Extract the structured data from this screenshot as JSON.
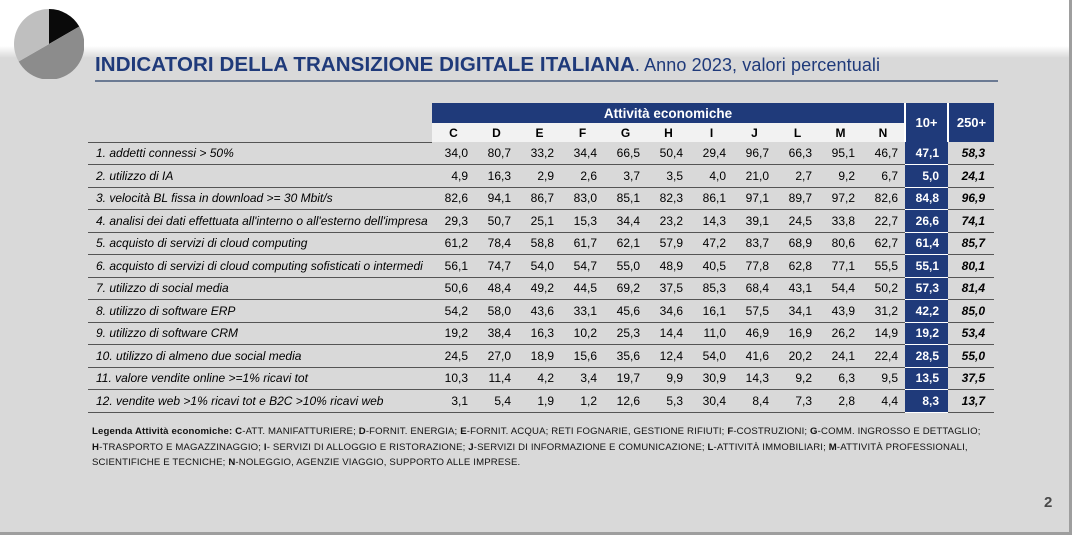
{
  "colors": {
    "accent": "#1f3a7a",
    "background": "#d9d9d9"
  },
  "title": {
    "main": "INDICATORI DELLA TRANSIZIONE DIGITALE ITALIANA",
    "sub": ". Anno 2023, valori percentuali"
  },
  "table": {
    "group_header": "Attività economiche",
    "columns": [
      "C",
      "D",
      "E",
      "F",
      "G",
      "H",
      "I",
      "J",
      "L",
      "M",
      "N"
    ],
    "total_headers": [
      "10+",
      "250+"
    ],
    "rows": [
      {
        "label": "1. addetti connessi > 50%",
        "values": [
          "34,0",
          "80,7",
          "33,2",
          "34,4",
          "66,5",
          "50,4",
          "29,4",
          "96,7",
          "66,3",
          "95,1",
          "46,7"
        ],
        "t10": "47,1",
        "t250": "58,3"
      },
      {
        "label": "2. utilizzo di IA",
        "values": [
          "4,9",
          "16,3",
          "2,9",
          "2,6",
          "3,7",
          "3,5",
          "4,0",
          "21,0",
          "2,7",
          "9,2",
          "6,7"
        ],
        "t10": "5,0",
        "t250": "24,1"
      },
      {
        "label": "3. velocità BL fissa in download >= 30 Mbit/s",
        "values": [
          "82,6",
          "94,1",
          "86,7",
          "83,0",
          "85,1",
          "82,3",
          "86,1",
          "97,1",
          "89,7",
          "97,2",
          "82,6"
        ],
        "t10": "84,8",
        "t250": "96,9"
      },
      {
        "label": "4. analisi dei dati effettuata all'interno o all'esterno dell'impresa",
        "values": [
          "29,3",
          "50,7",
          "25,1",
          "15,3",
          "34,4",
          "23,2",
          "14,3",
          "39,1",
          "24,5",
          "33,8",
          "22,7"
        ],
        "t10": "26,6",
        "t250": "74,1"
      },
      {
        "label": "5. acquisto di servizi di cloud computing",
        "values": [
          "61,2",
          "78,4",
          "58,8",
          "61,7",
          "62,1",
          "57,9",
          "47,2",
          "83,7",
          "68,9",
          "80,6",
          "62,7"
        ],
        "t10": "61,4",
        "t250": "85,7"
      },
      {
        "label": "6. acquisto di servizi di cloud computing sofisticati o intermedi",
        "values": [
          "56,1",
          "74,7",
          "54,0",
          "54,7",
          "55,0",
          "48,9",
          "40,5",
          "77,8",
          "62,8",
          "77,1",
          "55,5"
        ],
        "t10": "55,1",
        "t250": "80,1"
      },
      {
        "label": "7. utilizzo di social media",
        "values": [
          "50,6",
          "48,4",
          "49,2",
          "44,5",
          "69,2",
          "37,5",
          "85,3",
          "68,4",
          "43,1",
          "54,4",
          "50,2"
        ],
        "t10": "57,3",
        "t250": "81,4"
      },
      {
        "label": "8. utilizzo di software ERP",
        "values": [
          "54,2",
          "58,0",
          "43,6",
          "33,1",
          "45,6",
          "34,6",
          "16,1",
          "57,5",
          "34,1",
          "43,9",
          "31,2"
        ],
        "t10": "42,2",
        "t250": "85,0"
      },
      {
        "label": "9. utilizzo di software CRM",
        "values": [
          "19,2",
          "38,4",
          "16,3",
          "10,2",
          "25,3",
          "14,4",
          "11,0",
          "46,9",
          "16,9",
          "26,2",
          "14,9"
        ],
        "t10": "19,2",
        "t250": "53,4"
      },
      {
        "label": "10.  utilizzo di almeno due social media",
        "values": [
          "24,5",
          "27,0",
          "18,9",
          "15,6",
          "35,6",
          "12,4",
          "54,0",
          "41,6",
          "20,2",
          "24,1",
          "22,4"
        ],
        "t10": "28,5",
        "t250": "55,0"
      },
      {
        "label": "11. valore vendite online >=1% ricavi tot",
        "values": [
          "10,3",
          "11,4",
          "4,2",
          "3,4",
          "19,7",
          "9,9",
          "30,9",
          "14,3",
          "9,2",
          "6,3",
          "9,5"
        ],
        "t10": "13,5",
        "t250": "37,5"
      },
      {
        "label": "12. vendite web >1% ricavi tot e  B2C >10% ricavi web",
        "values": [
          "3,1",
          "5,4",
          "1,9",
          "1,2",
          "12,6",
          "5,3",
          "30,4",
          "8,4",
          "7,3",
          "2,8",
          "4,4"
        ],
        "t10": "8,3",
        "t250": "13,7"
      }
    ]
  },
  "legend": {
    "heading": "Legenda Attività economiche:",
    "items": [
      {
        "code": "C",
        "text": "-ATT. MANIFATTURIERE; "
      },
      {
        "code": "D",
        "text": "-FORNIT. ENERGIA; "
      },
      {
        "code": "E",
        "text": "-FORNIT. ACQUA; RETI FOGNARIE, GESTIONE RIFIUTI; "
      },
      {
        "code": "F",
        "text": "-COSTRUZIONI; "
      },
      {
        "code": "G",
        "text": "-COMM. INGROSSO E DETTAGLIO; "
      },
      {
        "code": "H",
        "text": "-TRASPORTO E MAGAZZINAGGIO; "
      },
      {
        "code": "I",
        "text": "- SERVIZI DI ALLOGGIO E RISTORAZIONE; "
      },
      {
        "code": "J",
        "text": "-SERVIZI DI INFORMAZIONE E COMUNICAZIONE; "
      },
      {
        "code": "L",
        "text": "-ATTIVITÀ IMMOBILIARI; "
      },
      {
        "code": "M",
        "text": "-ATTIVITÀ PROFESSIONALI, SCIENTIFICHE E TECNICHE; "
      },
      {
        "code": "N",
        "text": "-NOLEGGIO, AGENZIE VIAGGIO, SUPPORTO ALLE IMPRESE."
      }
    ]
  },
  "page_number": "2",
  "logo_icon": "pie-chart-icon"
}
